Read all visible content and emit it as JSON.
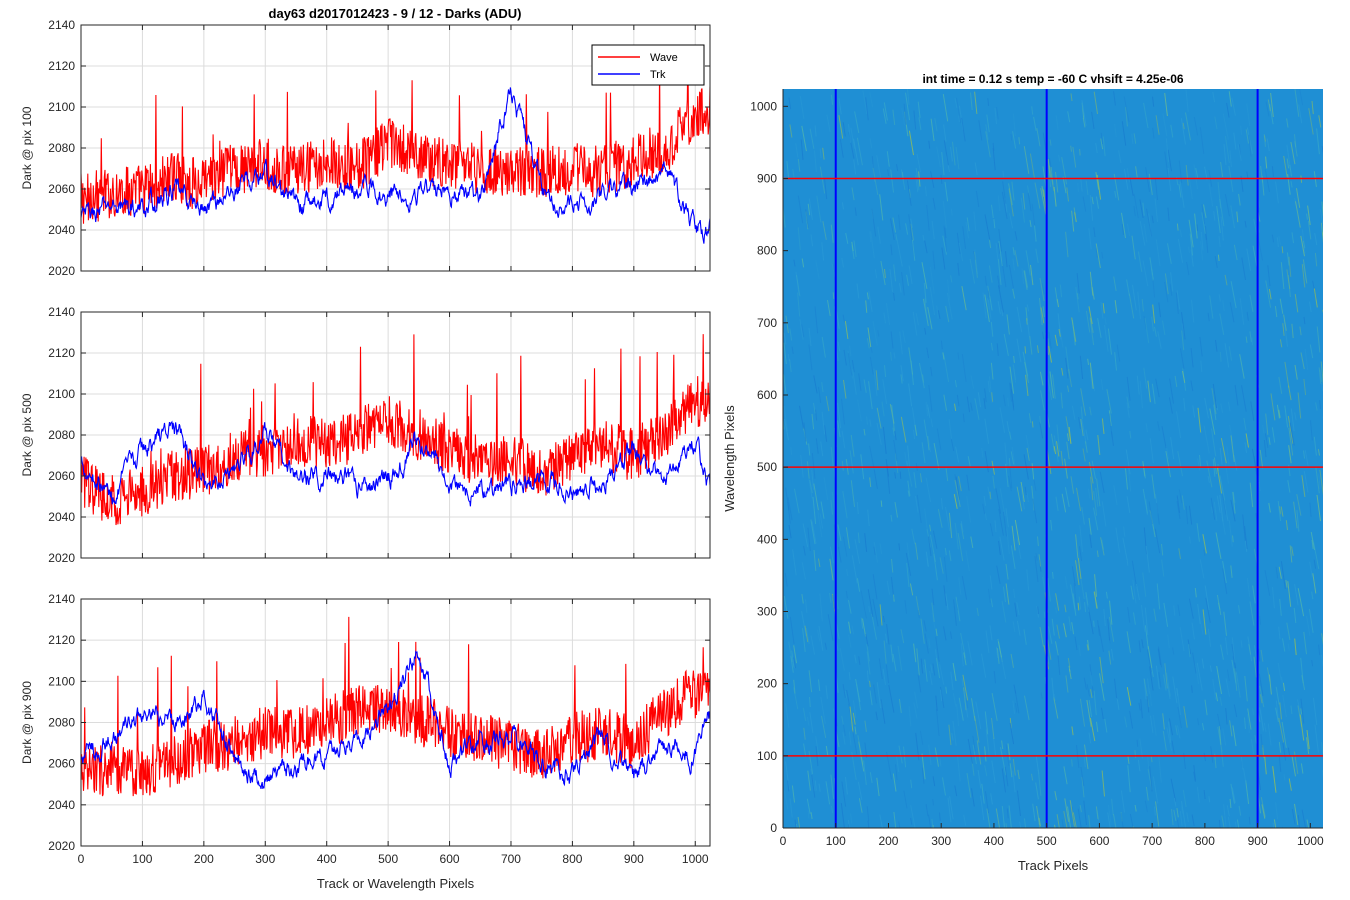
{
  "figure": {
    "title": "day63 d2017012423 - 9 / 12 - Darks (ADU)",
    "x_label_left": "Track or Wavelength Pixels"
  },
  "legend": {
    "entries": [
      {
        "name": "Wave",
        "color": "#ff0000"
      },
      {
        "name": "Trk",
        "color": "#0000ff"
      }
    ],
    "placement": "top-right"
  },
  "chart_data": [
    {
      "type": "line",
      "ylabel": "Dark @ pix 100",
      "xlim": [
        0,
        1024
      ],
      "ylim": [
        2020,
        2140
      ],
      "xticks": [
        0,
        100,
        200,
        300,
        400,
        500,
        600,
        700,
        800,
        900,
        1000
      ],
      "yticks": [
        2020,
        2040,
        2060,
        2080,
        2100,
        2120,
        2140
      ],
      "grid": true,
      "show_xticklabels": false,
      "series": [
        {
          "name": "Wave",
          "color": "#ff0000",
          "x": [
            0,
            50,
            100,
            150,
            200,
            250,
            300,
            350,
            400,
            450,
            500,
            550,
            600,
            650,
            700,
            750,
            800,
            850,
            900,
            950,
            1000,
            1024
          ],
          "y": [
            2055,
            2058,
            2060,
            2065,
            2062,
            2070,
            2072,
            2068,
            2075,
            2070,
            2082,
            2075,
            2072,
            2070,
            2068,
            2068,
            2070,
            2068,
            2075,
            2080,
            2095,
            2100
          ]
        },
        {
          "name": "Trk",
          "color": "#0000ff",
          "x": [
            0,
            50,
            100,
            150,
            200,
            250,
            300,
            350,
            400,
            450,
            500,
            550,
            600,
            650,
            700,
            750,
            800,
            850,
            900,
            950,
            1000,
            1024
          ],
          "y": [
            2045,
            2052,
            2050,
            2058,
            2050,
            2060,
            2068,
            2052,
            2055,
            2062,
            2058,
            2058,
            2060,
            2055,
            2110,
            2060,
            2050,
            2058,
            2062,
            2068,
            2042,
            2040
          ]
        }
      ]
    },
    {
      "type": "line",
      "ylabel": "Dark @ pix 500",
      "xlim": [
        0,
        1024
      ],
      "ylim": [
        2020,
        2140
      ],
      "xticks": [
        0,
        100,
        200,
        300,
        400,
        500,
        600,
        700,
        800,
        900,
        1000
      ],
      "yticks": [
        2020,
        2040,
        2060,
        2080,
        2100,
        2120,
        2140
      ],
      "grid": true,
      "show_xticklabels": false,
      "series": [
        {
          "name": "Wave",
          "color": "#ff0000",
          "x": [
            0,
            50,
            100,
            150,
            200,
            250,
            300,
            350,
            400,
            450,
            500,
            550,
            600,
            650,
            700,
            750,
            800,
            850,
            900,
            950,
            1000,
            1024
          ],
          "y": [
            2058,
            2048,
            2052,
            2060,
            2062,
            2070,
            2072,
            2078,
            2075,
            2080,
            2088,
            2080,
            2072,
            2068,
            2068,
            2062,
            2070,
            2075,
            2070,
            2082,
            2095,
            2100
          ]
        },
        {
          "name": "Trk",
          "color": "#0000ff",
          "x": [
            0,
            50,
            100,
            150,
            200,
            250,
            300,
            350,
            400,
            450,
            500,
            550,
            600,
            650,
            700,
            750,
            800,
            850,
            900,
            950,
            1000,
            1024
          ],
          "y": [
            2068,
            2050,
            2072,
            2085,
            2055,
            2065,
            2080,
            2058,
            2062,
            2055,
            2060,
            2075,
            2058,
            2052,
            2055,
            2058,
            2050,
            2058,
            2072,
            2060,
            2080,
            2050
          ]
        }
      ]
    },
    {
      "type": "line",
      "ylabel": "Dark @ pix 900",
      "xlabel": "Track or Wavelength Pixels",
      "xlim": [
        0,
        1024
      ],
      "ylim": [
        2020,
        2140
      ],
      "xticks": [
        0,
        100,
        200,
        300,
        400,
        500,
        600,
        700,
        800,
        900,
        1000
      ],
      "yticks": [
        2020,
        2040,
        2060,
        2080,
        2100,
        2120,
        2140
      ],
      "grid": true,
      "show_xticklabels": true,
      "series": [
        {
          "name": "Wave",
          "color": "#ff0000",
          "x": [
            0,
            50,
            100,
            150,
            200,
            250,
            300,
            350,
            400,
            450,
            500,
            550,
            600,
            650,
            700,
            750,
            800,
            850,
            900,
            950,
            1000,
            1024
          ],
          "y": [
            2055,
            2058,
            2055,
            2062,
            2068,
            2070,
            2075,
            2075,
            2080,
            2085,
            2088,
            2082,
            2075,
            2072,
            2068,
            2065,
            2072,
            2075,
            2070,
            2085,
            2095,
            2092
          ]
        },
        {
          "name": "Trk",
          "color": "#0000ff",
          "x": [
            0,
            50,
            100,
            150,
            200,
            250,
            300,
            350,
            400,
            450,
            500,
            550,
            600,
            650,
            700,
            750,
            800,
            850,
            900,
            950,
            1000,
            1024
          ],
          "y": [
            2062,
            2072,
            2082,
            2080,
            2092,
            2062,
            2052,
            2058,
            2065,
            2072,
            2090,
            2115,
            2060,
            2068,
            2075,
            2060,
            2055,
            2072,
            2052,
            2068,
            2065,
            2082
          ]
        }
      ]
    },
    {
      "type": "heatmap",
      "title": "int time = 0.12 s    temp = -60 C    vhsift = 4.25e-06",
      "xlabel": "Track Pixels",
      "ylabel": "Wavelength Pixels",
      "xlim": [
        0,
        1024
      ],
      "ylim": [
        0,
        1024
      ],
      "xticks": [
        0,
        100,
        200,
        300,
        400,
        500,
        600,
        700,
        800,
        900,
        1000
      ],
      "yticks": [
        0,
        100,
        200,
        300,
        400,
        500,
        600,
        700,
        800,
        900,
        1000
      ],
      "colormap": "parula",
      "base_color": "#1f8fd4",
      "bright_color": "#8fbd5e",
      "bright_regions": [
        [
          440,
          620
        ],
        [
          900,
          1024
        ]
      ],
      "vertical_lines": {
        "x": [
          100,
          500,
          900
        ],
        "color": "#0000ff"
      },
      "horizontal_lines": {
        "y": [
          100,
          500,
          900
        ],
        "color": "#ff0000"
      }
    }
  ]
}
